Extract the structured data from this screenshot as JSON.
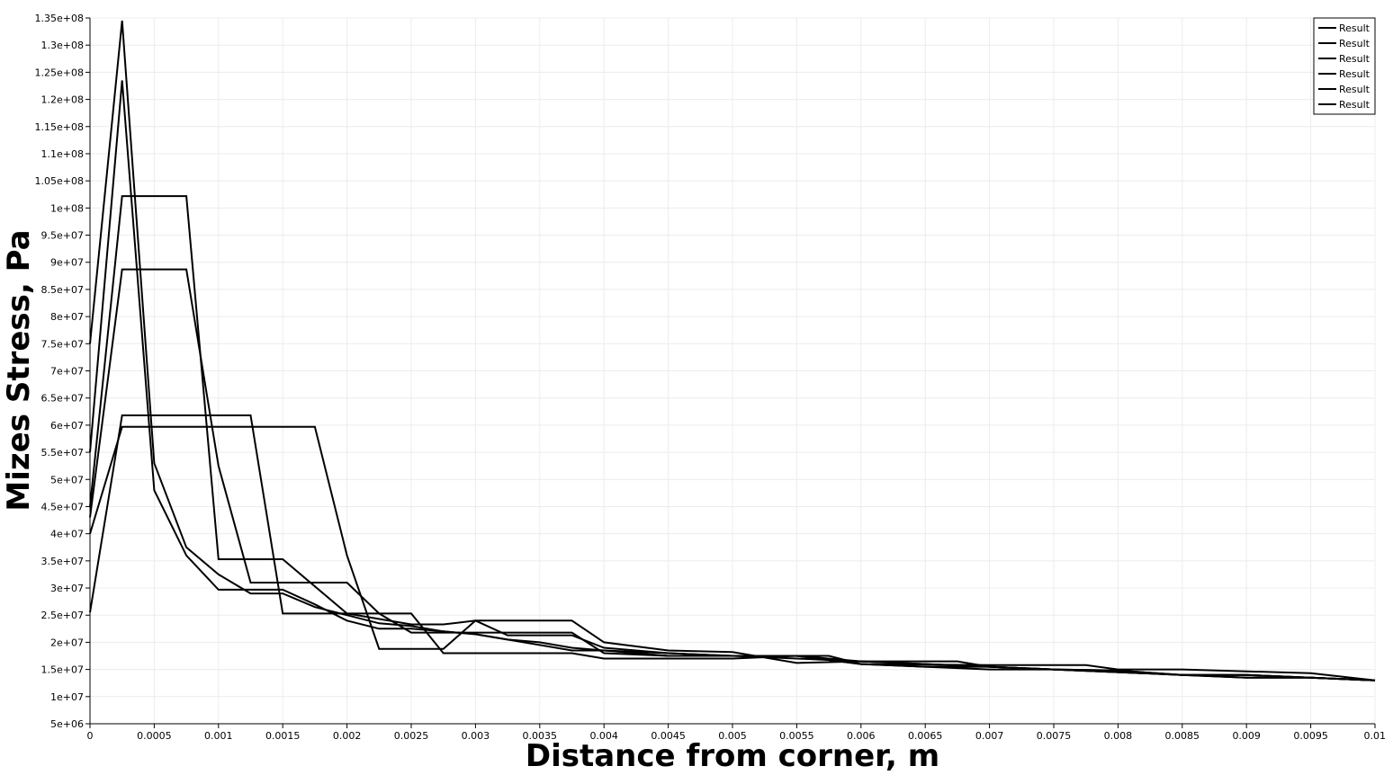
{
  "chart_data": {
    "type": "line",
    "title": "",
    "xlabel": "Distance from corner, m",
    "ylabel": "Mizes Stress, Pa",
    "xlim": [
      0,
      0.01
    ],
    "ylim": [
      5000000,
      135000000
    ],
    "x_ticks": [
      0,
      0.0005,
      0.001,
      0.0015,
      0.002,
      0.0025,
      0.003,
      0.0035,
      0.004,
      0.0045,
      0.005,
      0.0055,
      0.006,
      0.0065,
      0.007,
      0.0075,
      0.008,
      0.0085,
      0.009,
      0.0095,
      0.01
    ],
    "x_tick_labels": [
      "0",
      "0.0005",
      "0.001",
      "0.0015",
      "0.002",
      "0.0025",
      "0.003",
      "0.0035",
      "0.004",
      "0.0045",
      "0.005",
      "0.0055",
      "0.006",
      "0.0065",
      "0.007",
      "0.0075",
      "0.008",
      "0.0085",
      "0.009",
      "0.0095",
      "0.01"
    ],
    "y_ticks": [
      5000000,
      10000000,
      15000000,
      20000000,
      25000000,
      30000000,
      35000000,
      40000000,
      45000000,
      50000000,
      55000000,
      60000000,
      65000000,
      70000000,
      75000000,
      80000000,
      85000000,
      90000000,
      95000000,
      100000000,
      105000000,
      110000000,
      115000000,
      120000000,
      125000000,
      130000000,
      135000000
    ],
    "y_tick_labels": [
      "5e+06",
      "1e+07",
      "1.5e+07",
      "2e+07",
      "2.5e+07",
      "3e+07",
      "3.5e+07",
      "4e+07",
      "4.5e+07",
      "5e+07",
      "5.5e+07",
      "6e+07",
      "6.5e+07",
      "7e+07",
      "7.5e+07",
      "8e+07",
      "8.5e+07",
      "9e+07",
      "9.5e+07",
      "1e+08",
      "1.05e+08",
      "1.1e+08",
      "1.15e+08",
      "1.2e+08",
      "1.25e+08",
      "1.3e+08",
      "1.35e+08"
    ],
    "grid": true,
    "legend_position": "top-right",
    "line_color": "#000000",
    "series": [
      {
        "name": "Result",
        "x": [
          0,
          0.00025,
          0.0005,
          0.00075,
          0.001,
          0.00125,
          0.0015,
          0.00175,
          0.002,
          0.00225,
          0.0025,
          0.00275,
          0.003,
          0.00325,
          0.0035,
          0.00375,
          0.004,
          0.0045,
          0.005,
          0.0055,
          0.006,
          0.0065,
          0.007,
          0.0075,
          0.008,
          0.0085,
          0.009,
          0.0095,
          0.01
        ],
        "y": [
          75000000,
          134500000,
          53000000,
          37500000,
          32500000,
          29000000,
          29000000,
          26500000,
          25000000,
          23500000,
          23000000,
          22000000,
          21500000,
          20500000,
          20000000,
          19000000,
          18500000,
          18000000,
          17500000,
          17500000,
          16500000,
          16000000,
          15500000,
          15000000,
          14500000,
          14000000,
          14000000,
          13500000,
          13000000
        ]
      },
      {
        "name": "Result",
        "x": [
          0,
          0.00025,
          0.0005,
          0.00075,
          0.001,
          0.00125,
          0.0015,
          0.00175,
          0.002,
          0.00225,
          0.0025,
          0.00275,
          0.003,
          0.00325,
          0.0035,
          0.00375,
          0.004,
          0.0045,
          0.005,
          0.0055,
          0.006,
          0.0065,
          0.007,
          0.0075,
          0.008,
          0.0085,
          0.009,
          0.0095,
          0.01
        ],
        "y": [
          55000000,
          123500000,
          48000000,
          36000000,
          29700000,
          29700000,
          29700000,
          27000000,
          24000000,
          22500000,
          22500000,
          22000000,
          21500000,
          20500000,
          19500000,
          18500000,
          18500000,
          17500000,
          17500000,
          17000000,
          16500000,
          16000000,
          15500000,
          15000000,
          14500000,
          14000000,
          13500000,
          13500000,
          13000000
        ]
      },
      {
        "name": "Result",
        "x": [
          0,
          0.00025,
          0.00075,
          0.001,
          0.0015,
          0.002,
          0.00225,
          0.0025,
          0.00275,
          0.003,
          0.00375,
          0.004,
          0.0045,
          0.005,
          0.0055,
          0.006,
          0.0065,
          0.007,
          0.0075,
          0.008,
          0.0085,
          0.009,
          0.0095,
          0.01
        ],
        "y": [
          45000000,
          102200000,
          102200000,
          35300000,
          35300000,
          25300000,
          25300000,
          21800000,
          21800000,
          21800000,
          21800000,
          18000000,
          17500000,
          17500000,
          17500000,
          16000000,
          15500000,
          15500000,
          15000000,
          14800000,
          14000000,
          14000000,
          13500000,
          13000000
        ]
      },
      {
        "name": "Result",
        "x": [
          0,
          0.00025,
          0.00075,
          0.001,
          0.00125,
          0.002,
          0.00225,
          0.0025,
          0.00275,
          0.003,
          0.00325,
          0.00375,
          0.004,
          0.0045,
          0.005,
          0.0055,
          0.006,
          0.0065,
          0.007,
          0.0075,
          0.008,
          0.0085,
          0.009,
          0.0095,
          0.01
        ],
        "y": [
          43000000,
          88700000,
          88700000,
          52500000,
          31000000,
          31000000,
          25300000,
          25300000,
          18000000,
          18000000,
          18000000,
          18000000,
          17000000,
          17000000,
          17000000,
          17500000,
          16000000,
          15500000,
          15000000,
          15000000,
          14800000,
          14000000,
          13500000,
          13500000,
          13000000
        ]
      },
      {
        "name": "Result",
        "x": [
          0,
          0.00025,
          0.00125,
          0.0015,
          0.002,
          0.0025,
          0.00275,
          0.003,
          0.00375,
          0.004,
          0.0045,
          0.005,
          0.0055,
          0.006,
          0.0065,
          0.00675,
          0.007,
          0.0075,
          0.008,
          0.0085,
          0.009,
          0.0095,
          0.01
        ],
        "y": [
          25500000,
          61800000,
          61800000,
          25300000,
          25300000,
          23300000,
          23300000,
          24000000,
          24000000,
          20000000,
          18500000,
          18200000,
          16200000,
          16500000,
          16500000,
          16500000,
          15500000,
          15000000,
          14500000,
          14000000,
          14000000,
          13500000,
          13000000
        ]
      },
      {
        "name": "Result",
        "x": [
          0,
          0.00025,
          0.00175,
          0.002,
          0.00225,
          0.0025,
          0.00275,
          0.003,
          0.00325,
          0.00375,
          0.004,
          0.0045,
          0.005,
          0.00575,
          0.006,
          0.007,
          0.00775,
          0.008,
          0.0085,
          0.0095,
          0.01
        ],
        "y": [
          40000000,
          59700000,
          59700000,
          36000000,
          18800000,
          18800000,
          18800000,
          24000000,
          21300000,
          21300000,
          19000000,
          18000000,
          17500000,
          17500000,
          16000000,
          15800000,
          15800000,
          15000000,
          15000000,
          14300000,
          13000000
        ]
      }
    ]
  }
}
